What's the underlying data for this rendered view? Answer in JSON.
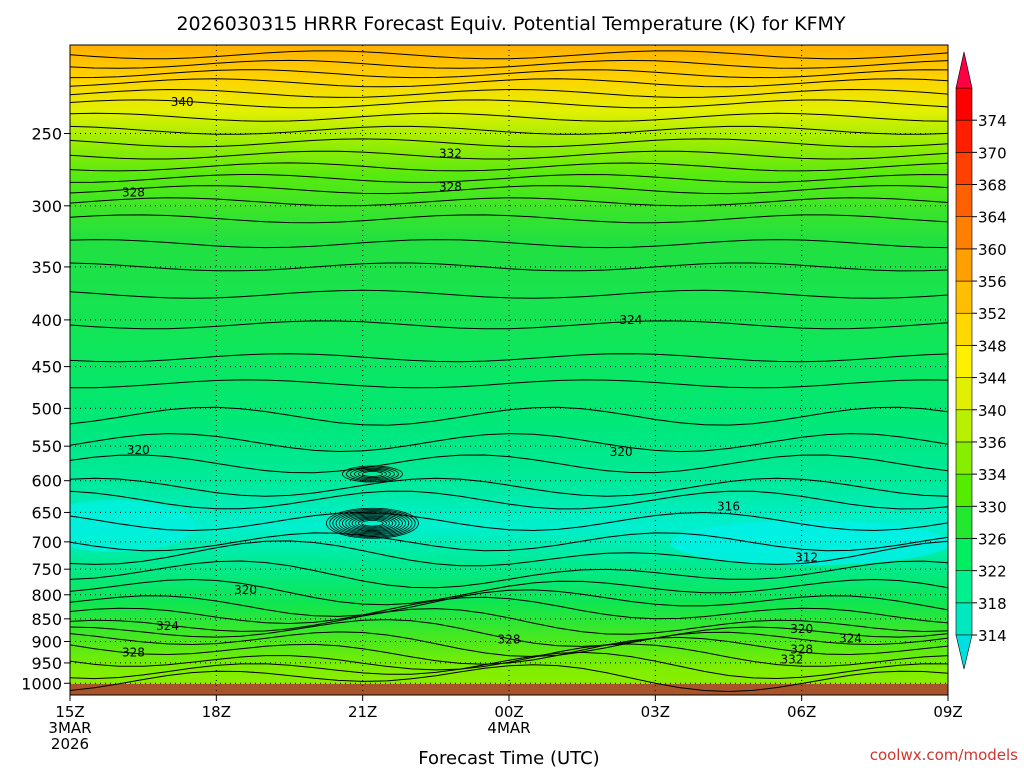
{
  "chart_data": {
    "type": "heatmap",
    "title": "2026030315 HRRR Forecast Equiv. Potential Temperature (K) for KFMY",
    "xlabel": "Forecast Time (UTC)",
    "ylabel": "",
    "x_ticks": [
      {
        "hour": 0,
        "label": "15Z",
        "sub": [
          "3MAR",
          "2026"
        ]
      },
      {
        "hour": 3,
        "label": "18Z",
        "sub": []
      },
      {
        "hour": 6,
        "label": "21Z",
        "sub": []
      },
      {
        "hour": 9,
        "label": "00Z",
        "sub": [
          "4MAR"
        ]
      },
      {
        "hour": 12,
        "label": "03Z",
        "sub": []
      },
      {
        "hour": 15,
        "label": "06Z",
        "sub": []
      },
      {
        "hour": 18,
        "label": "09Z",
        "sub": []
      }
    ],
    "y_ticks": [
      250,
      300,
      350,
      400,
      450,
      500,
      550,
      600,
      650,
      700,
      750,
      800,
      850,
      900,
      950,
      1000
    ],
    "y_range": [
      1030,
      200
    ],
    "y_scale": "log-pressure",
    "colorbar": {
      "levels": [
        314,
        318,
        322,
        326,
        330,
        334,
        336,
        340,
        344,
        348,
        352,
        356,
        360,
        364,
        368,
        370,
        374
      ],
      "colors": [
        "#00e8c0",
        "#00f090",
        "#00ee60",
        "#22e830",
        "#55ec00",
        "#88ee00",
        "#b8f000",
        "#e0f000",
        "#fff000",
        "#ffd800",
        "#ffbe00",
        "#ffa000",
        "#ff8000",
        "#ff6000",
        "#ff4000",
        "#ff1e00",
        "#ff0000"
      ],
      "low_extend_color": "#00e0e0",
      "high_extend_color": "#ff0044"
    },
    "contour_labels": [
      {
        "value": "340",
        "hour": 2.3,
        "p": 231
      },
      {
        "value": "332",
        "hour": 7.8,
        "p": 263
      },
      {
        "value": "328",
        "hour": 1.3,
        "p": 290
      },
      {
        "value": "328",
        "hour": 7.8,
        "p": 286
      },
      {
        "value": "324",
        "hour": 11.5,
        "p": 400
      },
      {
        "value": "320",
        "hour": 1.4,
        "p": 555
      },
      {
        "value": "320",
        "hour": 11.3,
        "p": 558
      },
      {
        "value": "316",
        "hour": 13.5,
        "p": 640
      },
      {
        "value": "312",
        "hour": 15.1,
        "p": 728
      },
      {
        "value": "320",
        "hour": 3.6,
        "p": 790
      },
      {
        "value": "324",
        "hour": 2.0,
        "p": 865
      },
      {
        "value": "328",
        "hour": 1.3,
        "p": 925
      },
      {
        "value": "328",
        "hour": 9.0,
        "p": 895
      },
      {
        "value": "320",
        "hour": 15.0,
        "p": 872
      },
      {
        "value": "324",
        "hour": 16.0,
        "p": 893
      },
      {
        "value": "328",
        "hour": 15.0,
        "p": 918
      },
      {
        "value": "332",
        "hour": 14.8,
        "p": 942
      }
    ],
    "legend": "colorbar-right",
    "grid": true
  },
  "credit": "coolwx.com/models"
}
